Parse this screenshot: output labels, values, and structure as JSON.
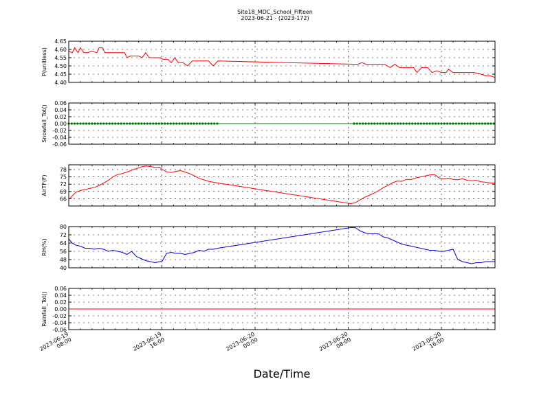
{
  "title_line1": "Site18_MDC_School_Fifteen",
  "title_line2": "2023-06-21 - (2023-172)",
  "xlabel": "Date/Time",
  "x_ticks": [
    {
      "l1": "2023-06-19",
      "l2": "08:00",
      "t": 0
    },
    {
      "l1": "2023-06-19",
      "l2": "16:00",
      "t": 8
    },
    {
      "l1": "2023-06-20",
      "l2": "00:00",
      "t": 16
    },
    {
      "l1": "2023-06-20",
      "l2": "08:00",
      "t": 24
    },
    {
      "l1": "2023-06-20",
      "l2": "16:00",
      "t": 32
    }
  ],
  "chart_data": [
    {
      "type": "line",
      "ylabel": "P(unitless)",
      "ylim": [
        4.4,
        4.65
      ],
      "yticks": [
        "4.40",
        "4.45",
        "4.50",
        "4.55",
        "4.60",
        "4.65"
      ],
      "color": "#ff0000",
      "markers": false,
      "x": [
        0,
        0.3,
        0.5,
        0.8,
        1.0,
        1.3,
        1.6,
        2.0,
        2.4,
        2.6,
        2.9,
        3.1,
        3.4,
        3.6,
        4.2,
        4.8,
        5.0,
        5.3,
        5.6,
        6.0,
        6.3,
        6.6,
        6.9,
        7.1,
        7.4,
        7.8,
        8.1,
        8.5,
        8.8,
        9.1,
        9.4,
        9.8,
        10.2,
        10.6,
        11.0,
        11.5,
        12.0,
        12.4,
        12.8,
        24.8,
        25.2,
        25.5,
        25.8,
        26.4,
        27.1,
        27.6,
        28.0,
        28.4,
        28.8,
        29.2,
        29.6,
        29.9,
        30.3,
        30.8,
        31.2,
        31.6,
        32.0,
        32.4,
        32.6,
        33.0,
        33.6,
        34.2,
        34.8,
        35.4,
        35.8,
        36.2,
        36.6
      ],
      "y": [
        4.59,
        4.58,
        4.61,
        4.58,
        4.61,
        4.58,
        4.58,
        4.59,
        4.58,
        4.61,
        4.61,
        4.58,
        4.58,
        4.58,
        4.58,
        4.58,
        4.55,
        4.56,
        4.56,
        4.56,
        4.55,
        4.58,
        4.55,
        4.55,
        4.55,
        4.55,
        4.54,
        4.54,
        4.52,
        4.55,
        4.52,
        4.52,
        4.5,
        4.53,
        4.53,
        4.53,
        4.53,
        4.5,
        4.53,
        4.51,
        4.52,
        4.51,
        4.51,
        4.51,
        4.51,
        4.49,
        4.51,
        4.49,
        4.49,
        4.49,
        4.49,
        4.46,
        4.49,
        4.49,
        4.46,
        4.47,
        4.46,
        4.46,
        4.48,
        4.46,
        4.46,
        4.46,
        4.46,
        4.45,
        4.44,
        4.44,
        4.43
      ]
    },
    {
      "type": "line",
      "ylabel": "Snowfall_Tot()",
      "ylim": [
        -0.06,
        0.06
      ],
      "yticks": [
        "-0.06",
        "-0.04",
        "-0.02",
        "0.00",
        "0.02",
        "0.04",
        "0.06"
      ],
      "color": "#007700",
      "markers": true,
      "segments": [
        [
          0,
          12.8
        ],
        [
          24.5,
          36.6
        ]
      ],
      "x": [
        0,
        36.6
      ],
      "y": [
        0.0,
        0.0
      ]
    },
    {
      "type": "line",
      "ylabel": "AirTF(F)",
      "ylim": [
        63,
        80
      ],
      "yticks": [
        "66",
        "69",
        "72",
        "75",
        "78"
      ],
      "color": "#ff0000",
      "markers": false,
      "x": [
        0,
        0.3,
        0.6,
        1.0,
        1.4,
        1.8,
        2.2,
        2.6,
        3.0,
        3.4,
        3.8,
        4.2,
        4.6,
        5.0,
        5.4,
        5.8,
        6.2,
        6.6,
        7.0,
        7.4,
        7.8,
        8.0,
        8.4,
        8.8,
        9.2,
        9.6,
        10.0,
        10.4,
        10.8,
        11.2,
        11.6,
        12.0,
        12.4,
        12.8,
        24.2,
        24.6,
        25.0,
        25.4,
        25.8,
        26.2,
        26.6,
        27.0,
        27.4,
        27.8,
        28.2,
        28.6,
        29.0,
        29.4,
        29.8,
        30.2,
        30.6,
        31.0,
        31.4,
        31.8,
        32.2,
        32.6,
        33.0,
        33.4,
        33.8,
        34.2,
        34.6,
        35.0,
        35.4,
        35.8,
        36.2,
        36.6
      ],
      "y": [
        65.6,
        67.2,
        68.6,
        69.4,
        69.8,
        70.3,
        70.6,
        71.5,
        72.5,
        73.6,
        75.0,
        76.0,
        76.4,
        77.0,
        77.8,
        78.4,
        79.1,
        79.5,
        79.3,
        78.9,
        79.0,
        78.2,
        77.1,
        76.8,
        77.3,
        77.6,
        77.0,
        76.3,
        75.4,
        74.4,
        73.8,
        73.2,
        72.8,
        72.5,
        64.0,
        64.3,
        65.5,
        66.6,
        67.4,
        68.3,
        69.3,
        70.6,
        71.5,
        72.6,
        73.3,
        73.2,
        74.0,
        73.9,
        74.6,
        75.0,
        75.4,
        75.8,
        76.0,
        74.6,
        74.2,
        74.5,
        74.0,
        73.8,
        74.3,
        73.6,
        73.4,
        73.6,
        73.0,
        72.8,
        72.5,
        72.5
      ]
    },
    {
      "type": "line",
      "ylabel": "RH(%)",
      "ylim": [
        40,
        80
      ],
      "yticks": [
        "40",
        "48",
        "56",
        "64",
        "72",
        "80"
      ],
      "color": "#0000cc",
      "markers": false,
      "x": [
        0,
        0.3,
        0.6,
        1.0,
        1.4,
        1.8,
        2.2,
        2.6,
        3.0,
        3.4,
        3.8,
        4.2,
        4.6,
        5.0,
        5.4,
        5.8,
        6.2,
        6.6,
        7.0,
        7.4,
        7.8,
        8.0,
        8.4,
        8.8,
        9.2,
        9.6,
        10.0,
        10.4,
        10.8,
        11.2,
        11.6,
        12.0,
        12.4,
        12.8,
        24.2,
        24.6,
        25.0,
        25.4,
        25.8,
        26.2,
        26.6,
        27.0,
        27.4,
        27.8,
        28.2,
        28.6,
        29.0,
        29.4,
        29.8,
        30.2,
        30.6,
        31.0,
        31.4,
        31.8,
        32.2,
        32.6,
        33.0,
        33.4,
        33.8,
        34.2,
        34.6,
        35.0,
        35.4,
        35.8,
        36.2,
        36.6
      ],
      "y": [
        68,
        64,
        62,
        61,
        59,
        59,
        58,
        59,
        58,
        56,
        57,
        56,
        55,
        53,
        56,
        51,
        49,
        47,
        46,
        45,
        46,
        46,
        54,
        55,
        54,
        54,
        53,
        54,
        55,
        57,
        56,
        58,
        58,
        59,
        79,
        79,
        76,
        74,
        73,
        73,
        73,
        70,
        69,
        67,
        65,
        63,
        62,
        61,
        60,
        59,
        58,
        57,
        57,
        56,
        56,
        57,
        58,
        48,
        46,
        45,
        44,
        45,
        45,
        46,
        46,
        46
      ]
    },
    {
      "type": "line",
      "ylabel": "Rainfall_Tot()",
      "ylim": [
        -0.06,
        0.06
      ],
      "yticks": [
        "-0.06",
        "-0.04",
        "-0.02",
        "0.00",
        "0.02",
        "0.04",
        "0.06"
      ],
      "color": "#ff0000",
      "markers": false,
      "x": [
        0,
        36.6
      ],
      "y": [
        0.0,
        0.0
      ]
    }
  ]
}
